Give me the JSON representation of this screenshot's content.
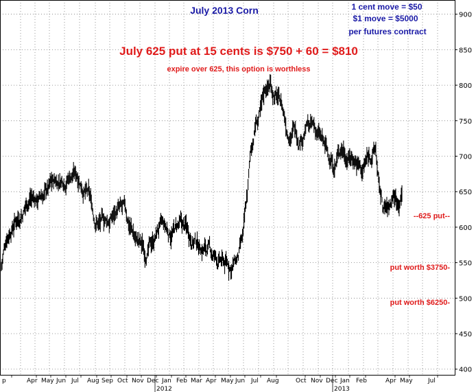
{
  "chart_data": {
    "type": "bar",
    "style": "ohlc",
    "title": "July 2013 Corn",
    "ylim": [
      392,
      920
    ],
    "y_ticks": [
      400,
      450,
      500,
      550,
      600,
      650,
      700,
      750,
      800,
      850,
      900
    ],
    "x_month_labels": [
      "p",
      "Apr",
      "May",
      "Jun",
      "Jul",
      "Aug",
      "Sep",
      "Oct",
      "Nov",
      "Dec",
      "Jan",
      "Feb",
      "Mar",
      "Apr",
      "May",
      "Jun",
      "Jul",
      "Aug",
      "Oct",
      "Nov",
      "Dec",
      "Jan",
      "Feb",
      "Apr",
      "May",
      "Jul"
    ],
    "x_year_labels": [
      "2012",
      "2013"
    ],
    "grid": true,
    "price_keypoints": [
      {
        "t": 0,
        "v": 545
      },
      {
        "t": 8,
        "v": 590
      },
      {
        "t": 18,
        "v": 610
      },
      {
        "t": 30,
        "v": 625
      },
      {
        "t": 42,
        "v": 645
      },
      {
        "t": 55,
        "v": 640
      },
      {
        "t": 70,
        "v": 655
      },
      {
        "t": 88,
        "v": 670
      },
      {
        "t": 100,
        "v": 678
      },
      {
        "t": 112,
        "v": 675
      },
      {
        "t": 122,
        "v": 655
      },
      {
        "t": 128,
        "v": 640
      },
      {
        "t": 135,
        "v": 615
      },
      {
        "t": 145,
        "v": 605
      },
      {
        "t": 158,
        "v": 610
      },
      {
        "t": 170,
        "v": 625
      },
      {
        "t": 180,
        "v": 615
      },
      {
        "t": 195,
        "v": 585
      },
      {
        "t": 208,
        "v": 565
      },
      {
        "t": 218,
        "v": 575
      },
      {
        "t": 230,
        "v": 600
      },
      {
        "t": 243,
        "v": 590
      },
      {
        "t": 258,
        "v": 600
      },
      {
        "t": 270,
        "v": 595
      },
      {
        "t": 285,
        "v": 580
      },
      {
        "t": 300,
        "v": 570
      },
      {
        "t": 312,
        "v": 555
      },
      {
        "t": 322,
        "v": 548
      },
      {
        "t": 335,
        "v": 545
      },
      {
        "t": 345,
        "v": 555
      },
      {
        "t": 352,
        "v": 580
      },
      {
        "t": 358,
        "v": 640
      },
      {
        "t": 363,
        "v": 700
      },
      {
        "t": 370,
        "v": 745
      },
      {
        "t": 378,
        "v": 760
      },
      {
        "t": 385,
        "v": 795
      },
      {
        "t": 392,
        "v": 802
      },
      {
        "t": 400,
        "v": 785
      },
      {
        "t": 408,
        "v": 772
      },
      {
        "t": 416,
        "v": 740
      },
      {
        "t": 425,
        "v": 740
      },
      {
        "t": 433,
        "v": 730
      },
      {
        "t": 445,
        "v": 745
      },
      {
        "t": 458,
        "v": 735
      },
      {
        "t": 466,
        "v": 720
      },
      {
        "t": 475,
        "v": 700
      },
      {
        "t": 485,
        "v": 690
      },
      {
        "t": 495,
        "v": 715
      },
      {
        "t": 505,
        "v": 705
      },
      {
        "t": 515,
        "v": 700
      },
      {
        "t": 525,
        "v": 680
      },
      {
        "t": 535,
        "v": 700
      },
      {
        "t": 545,
        "v": 710
      },
      {
        "t": 550,
        "v": 650
      },
      {
        "t": 556,
        "v": 625
      },
      {
        "t": 564,
        "v": 622
      },
      {
        "t": 570,
        "v": 645
      },
      {
        "t": 576,
        "v": 640
      },
      {
        "t": 583,
        "v": 648
      }
    ]
  },
  "annotations": {
    "contract_note_line1": "1 cent move = $50",
    "contract_note_line2": "$1 move = $5000",
    "contract_note_line3": "per futures contract",
    "headline": "July 625 put at 15 cents is $750 + 60 = $810",
    "subline": "expire over 625, this option is worthless",
    "label_625": "--625 put--",
    "label_550": "put worth $3750-",
    "label_500": "put worth $6250-"
  },
  "colors": {
    "title": "#1a1aa6",
    "red": "#e01b1b",
    "price": "#000000",
    "grid": "#7a7a7a",
    "frame": "#000000"
  }
}
